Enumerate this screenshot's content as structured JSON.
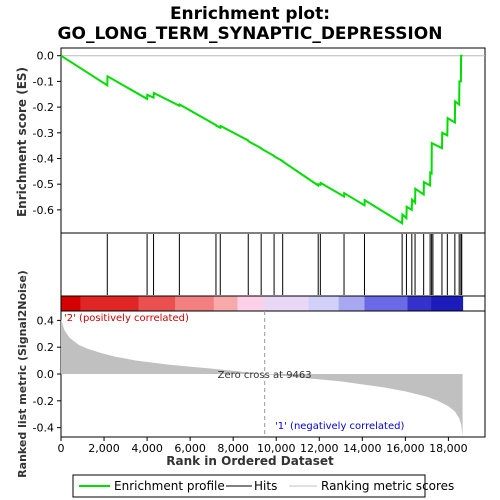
{
  "chart_data": {
    "type": "line",
    "title_line1": "Enrichment plot:",
    "title_line2": "GO_LONG_TERM_SYNAPTIC_DEPRESSION",
    "es_panel": {
      "ylabel": "Enrichment score (ES)",
      "ylim": [
        -0.69,
        0.03
      ],
      "yticks": [
        0.0,
        -0.1,
        -0.2,
        -0.3,
        -0.4,
        -0.5,
        -0.6
      ],
      "ytick_labels": [
        "0.0",
        "-0.1",
        "-0.2",
        "-0.3",
        "-0.4",
        "-0.5",
        "-0.6"
      ],
      "series": [
        {
          "name": "Enrichment profile",
          "color": "#00dd00",
          "x": [
            0,
            2150,
            2160,
            4000,
            4010,
            4300,
            4310,
            5500,
            5510,
            7200,
            7210,
            7400,
            7410,
            8700,
            8710,
            9300,
            9310,
            9900,
            9910,
            10300,
            10310,
            11950,
            11960,
            12050,
            12060,
            13150,
            13160,
            14100,
            14110,
            15850,
            15860,
            16050,
            16060,
            16300,
            16310,
            16450,
            16460,
            16850,
            16860,
            17150,
            17160,
            17220,
            17230,
            17700,
            17710,
            17950,
            17960,
            18300,
            18310,
            18500,
            18510,
            18580,
            18590,
            18660
          ],
          "y": [
            0.0,
            -0.115,
            -0.08,
            -0.168,
            -0.152,
            -0.163,
            -0.145,
            -0.195,
            -0.19,
            -0.27,
            -0.272,
            -0.28,
            -0.273,
            -0.33,
            -0.333,
            -0.36,
            -0.362,
            -0.39,
            -0.392,
            -0.41,
            -0.412,
            -0.505,
            -0.5,
            -0.502,
            -0.495,
            -0.548,
            -0.535,
            -0.582,
            -0.562,
            -0.652,
            -0.618,
            -0.632,
            -0.588,
            -0.6,
            -0.56,
            -0.572,
            -0.518,
            -0.54,
            -0.492,
            -0.505,
            -0.455,
            -0.458,
            -0.34,
            -0.36,
            -0.3,
            -0.31,
            -0.243,
            -0.26,
            -0.178,
            -0.19,
            -0.1,
            -0.1,
            0.0,
            0.0
          ]
        }
      ]
    },
    "hits": [
      2150,
      4000,
      4300,
      5500,
      7200,
      7400,
      8700,
      9300,
      9900,
      10300,
      11950,
      12050,
      13150,
      14100,
      15850,
      16050,
      16300,
      16450,
      16850,
      17150,
      17220,
      17280,
      17700,
      17950,
      18300,
      18500,
      18580,
      18620
    ],
    "heat_bar": {
      "segments_color": [
        "#d40000",
        "#e02525",
        "#ea5050",
        "#f38080",
        "#f8aaaa",
        "#fbd0e8",
        "#e8d8f6",
        "#d0d0f8",
        "#a8a8f2",
        "#6a6ae6",
        "#3333cc",
        "#1c1cbb"
      ],
      "segments_end": [
        900,
        3600,
        5300,
        7100,
        8200,
        9400,
        11500,
        12900,
        14100,
        16100,
        17200,
        18660
      ]
    },
    "metric_panel": {
      "ylabel": "Ranked list metric (Signal2Noise)",
      "ylim": [
        -0.47,
        0.47
      ],
      "yticks": [
        0.4,
        0.2,
        0.0,
        -0.2,
        -0.4
      ],
      "ytick_labels": [
        "0.4",
        "0.2",
        "0.0",
        "-0.2",
        "-0.4"
      ],
      "curve_x": [
        0,
        150,
        400,
        800,
        1200,
        1800,
        2500,
        3500,
        5000,
        7000,
        9463,
        11000,
        13000,
        15000,
        16000,
        17000,
        17500,
        18000,
        18300,
        18500,
        18600,
        18660
      ],
      "curve_y": [
        0.41,
        0.33,
        0.27,
        0.22,
        0.19,
        0.16,
        0.13,
        0.1,
        0.07,
        0.04,
        0.0,
        -0.025,
        -0.055,
        -0.1,
        -0.13,
        -0.17,
        -0.2,
        -0.24,
        -0.28,
        -0.33,
        -0.38,
        -0.47
      ],
      "zero_cross_label": "Zero cross at 9463",
      "zero_cross": 9463,
      "pos_label": "'2' (positively correlated)",
      "neg_label": "'1' (negatively correlated)"
    },
    "xlabel": "Rank in Ordered Dataset",
    "xlim": [
      0,
      19700
    ],
    "xticks": [
      0,
      2000,
      4000,
      6000,
      8000,
      10000,
      12000,
      14000,
      16000,
      18000
    ],
    "xtick_labels": [
      "0",
      "2,000",
      "4,000",
      "6,000",
      "8,000",
      "10,000",
      "12,000",
      "14,000",
      "16,000",
      "18,000"
    ],
    "legend": [
      "Enrichment profile",
      "Hits",
      "Ranking metric scores"
    ],
    "colors": {
      "profile": "#00dd00",
      "hits": "#000000",
      "metric": "#c0c0c0",
      "pos_text": "#cc0000",
      "neg_text": "#0000dd"
    }
  }
}
